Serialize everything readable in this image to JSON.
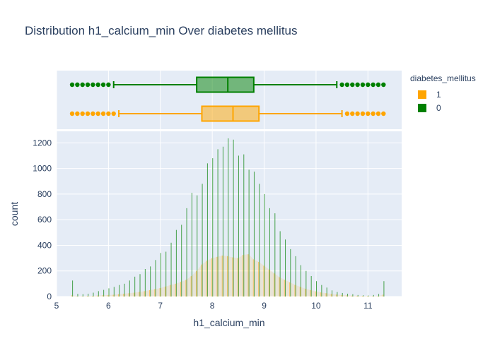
{
  "chart_data": {
    "type": "histogram",
    "title": "Distribution h1_calcium_min Over diabetes mellitus",
    "xlabel": "h1_calcium_min",
    "ylabel": "count",
    "xlim": [
      5,
      11.65
    ],
    "ylim": [
      0,
      1290
    ],
    "x_ticks": [
      5,
      6,
      7,
      8,
      9,
      10,
      11
    ],
    "y_ticks": [
      0,
      200,
      400,
      600,
      800,
      1000,
      1200
    ],
    "legend": {
      "title": "diabetes_mellitus",
      "position": "right"
    },
    "series": [
      {
        "name": "1",
        "color": "#FFA500",
        "box": {
          "lowerfence": 6.2,
          "q1": 7.8,
          "median": 8.4,
          "q3": 8.9,
          "upperfence": 10.5
        },
        "outliers": [
          5.3,
          5.4,
          5.5,
          5.6,
          5.7,
          5.8,
          5.9,
          6.0,
          6.1,
          10.6,
          10.7,
          10.8,
          10.9,
          11.0,
          11.1,
          11.2,
          11.3
        ],
        "histogram": [
          [
            5.3,
            10
          ],
          [
            5.4,
            3
          ],
          [
            5.5,
            3
          ],
          [
            5.6,
            4
          ],
          [
            5.7,
            5
          ],
          [
            5.8,
            8
          ],
          [
            5.9,
            10
          ],
          [
            6.0,
            12
          ],
          [
            6.1,
            14
          ],
          [
            6.2,
            18
          ],
          [
            6.3,
            22
          ],
          [
            6.4,
            26
          ],
          [
            6.5,
            30
          ],
          [
            6.6,
            36
          ],
          [
            6.7,
            42
          ],
          [
            6.8,
            50
          ],
          [
            6.9,
            58
          ],
          [
            7.0,
            66
          ],
          [
            7.1,
            78
          ],
          [
            7.2,
            90
          ],
          [
            7.3,
            100
          ],
          [
            7.4,
            115
          ],
          [
            7.5,
            130
          ],
          [
            7.6,
            160
          ],
          [
            7.7,
            200
          ],
          [
            7.8,
            250
          ],
          [
            7.9,
            280
          ],
          [
            8.0,
            300
          ],
          [
            8.1,
            310
          ],
          [
            8.2,
            320
          ],
          [
            8.3,
            315
          ],
          [
            8.4,
            305
          ],
          [
            8.5,
            300
          ],
          [
            8.6,
            325
          ],
          [
            8.7,
            330
          ],
          [
            8.8,
            290
          ],
          [
            8.9,
            270
          ],
          [
            9.0,
            240
          ],
          [
            9.1,
            210
          ],
          [
            9.2,
            180
          ],
          [
            9.3,
            150
          ],
          [
            9.4,
            130
          ],
          [
            9.5,
            110
          ],
          [
            9.6,
            90
          ],
          [
            9.7,
            75
          ],
          [
            9.8,
            60
          ],
          [
            9.9,
            50
          ],
          [
            10.0,
            40
          ],
          [
            10.1,
            32
          ],
          [
            10.2,
            26
          ],
          [
            10.3,
            20
          ],
          [
            10.4,
            15
          ],
          [
            10.5,
            12
          ],
          [
            10.6,
            9
          ],
          [
            10.7,
            7
          ],
          [
            10.8,
            6
          ],
          [
            10.9,
            5
          ],
          [
            11.0,
            4
          ],
          [
            11.1,
            4
          ],
          [
            11.2,
            4
          ],
          [
            11.3,
            15
          ]
        ]
      },
      {
        "name": "0",
        "color": "#008000",
        "box": {
          "lowerfence": 6.1,
          "q1": 7.7,
          "median": 8.3,
          "q3": 8.8,
          "upperfence": 10.4
        },
        "outliers": [
          5.3,
          5.4,
          5.5,
          5.6,
          5.7,
          5.8,
          5.9,
          6.0,
          10.5,
          10.6,
          10.7,
          10.8,
          10.9,
          11.0,
          11.1,
          11.2,
          11.3
        ],
        "histogram": [
          [
            5.3,
            125
          ],
          [
            5.4,
            20
          ],
          [
            5.5,
            18
          ],
          [
            5.6,
            22
          ],
          [
            5.7,
            30
          ],
          [
            5.8,
            42
          ],
          [
            5.9,
            52
          ],
          [
            6.0,
            64
          ],
          [
            6.1,
            75
          ],
          [
            6.2,
            90
          ],
          [
            6.3,
            100
          ],
          [
            6.4,
            125
          ],
          [
            6.5,
            155
          ],
          [
            6.6,
            175
          ],
          [
            6.7,
            215
          ],
          [
            6.8,
            235
          ],
          [
            6.9,
            285
          ],
          [
            7.0,
            340
          ],
          [
            7.1,
            350
          ],
          [
            7.2,
            420
          ],
          [
            7.3,
            520
          ],
          [
            7.4,
            560
          ],
          [
            7.5,
            690
          ],
          [
            7.6,
            810
          ],
          [
            7.7,
            790
          ],
          [
            7.8,
            880
          ],
          [
            7.9,
            1040
          ],
          [
            8.0,
            1080
          ],
          [
            8.1,
            1150
          ],
          [
            8.2,
            1170
          ],
          [
            8.3,
            1235
          ],
          [
            8.4,
            1225
          ],
          [
            8.5,
            1100
          ],
          [
            8.6,
            1110
          ],
          [
            8.7,
            990
          ],
          [
            8.8,
            975
          ],
          [
            8.9,
            880
          ],
          [
            9.0,
            800
          ],
          [
            9.1,
            690
          ],
          [
            9.2,
            650
          ],
          [
            9.3,
            510
          ],
          [
            9.4,
            445
          ],
          [
            9.5,
            370
          ],
          [
            9.6,
            315
          ],
          [
            9.7,
            245
          ],
          [
            9.8,
            200
          ],
          [
            9.9,
            160
          ],
          [
            10.0,
            120
          ],
          [
            10.1,
            90
          ],
          [
            10.2,
            70
          ],
          [
            10.3,
            48
          ],
          [
            10.4,
            35
          ],
          [
            10.5,
            28
          ],
          [
            10.6,
            22
          ],
          [
            10.7,
            18
          ],
          [
            10.8,
            12
          ],
          [
            10.9,
            10
          ],
          [
            11.0,
            8
          ],
          [
            11.1,
            12
          ],
          [
            11.2,
            20
          ],
          [
            11.3,
            120
          ]
        ]
      }
    ]
  }
}
